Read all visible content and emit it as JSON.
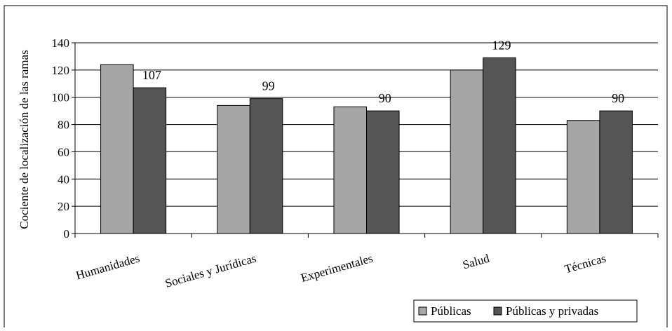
{
  "chart_data": {
    "type": "bar",
    "title": "",
    "xlabel": "",
    "ylabel": "Cociente de localización de las ramas",
    "ylim": [
      0,
      140
    ],
    "yticks": [
      0,
      20,
      40,
      60,
      80,
      100,
      120,
      140
    ],
    "grid": true,
    "legend_position": "bottom-right",
    "categories": [
      "Humanidades",
      "Sociales y Jurídicas",
      "Experimentales",
      "Salud",
      "Técnicas"
    ],
    "series": [
      {
        "name": "Públicas",
        "values": [
          124,
          94,
          93,
          120,
          83
        ],
        "color": "#a6a6a6"
      },
      {
        "name": "Públicas y privadas",
        "values": [
          107,
          99,
          90,
          129,
          90
        ],
        "color": "#555555"
      }
    ],
    "data_labels": [
      "107",
      "99",
      "90",
      "129",
      "90"
    ]
  }
}
